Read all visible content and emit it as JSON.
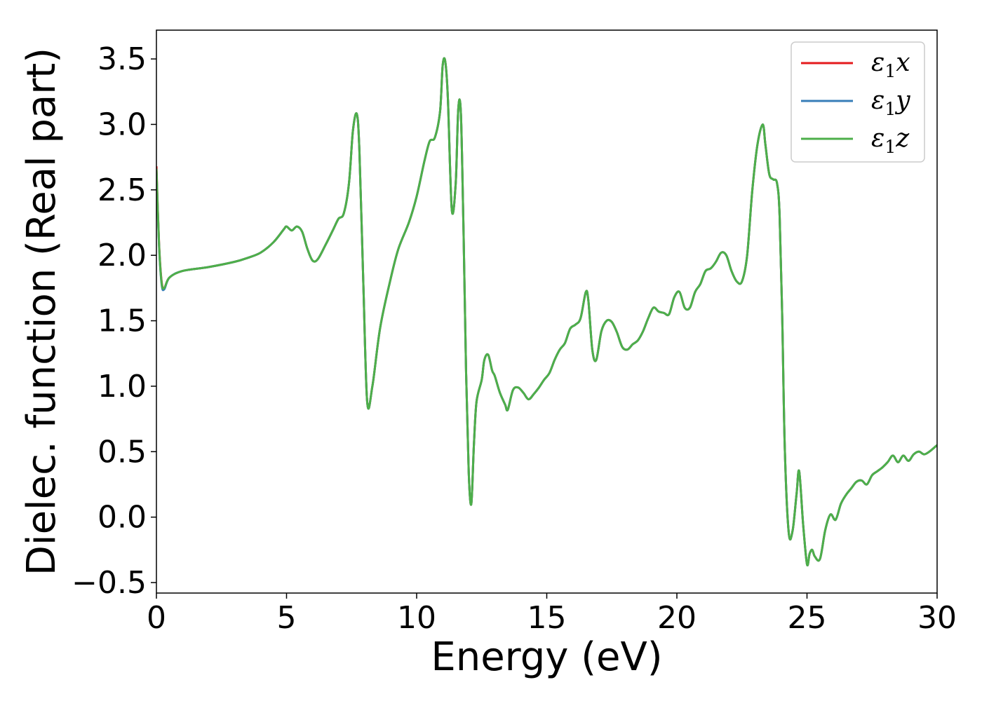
{
  "chart_data": {
    "type": "line",
    "xlabel": "Energy (eV)",
    "ylabel": "Dielec. function (Real part)",
    "xlim": [
      0,
      30
    ],
    "ylim": [
      -0.58,
      3.72
    ],
    "xticks": [
      0,
      5,
      10,
      15,
      20,
      25,
      30
    ],
    "yticks": [
      -0.5,
      0.0,
      0.5,
      1.0,
      1.5,
      2.0,
      2.5,
      3.0,
      3.5
    ],
    "ytick_labels": [
      "−0.5",
      "0.0",
      "0.5",
      "1.0",
      "1.5",
      "2.0",
      "2.5",
      "3.0",
      "3.5"
    ],
    "grid": false,
    "legend": "top-right",
    "series": [
      {
        "name": "ε₁x",
        "name_parts": [
          "ε",
          "1",
          "x"
        ],
        "color": "#e41a1c",
        "x": [
          0,
          0.1,
          0.2,
          0.3,
          0.5,
          1.0,
          2.0,
          3.0,
          3.5,
          4.0,
          4.5,
          4.9,
          5.0,
          5.2,
          5.4,
          5.6,
          5.8,
          6.0,
          6.2,
          6.5,
          6.8,
          7.0,
          7.2,
          7.4,
          7.55,
          7.7,
          7.8,
          7.95,
          8.1,
          8.3,
          8.6,
          9.0,
          9.3,
          9.7,
          10.0,
          10.3,
          10.5,
          10.7,
          10.9,
          11.0,
          11.1,
          11.2,
          11.35,
          11.5,
          11.6,
          11.7,
          11.8,
          11.9,
          12.0,
          12.1,
          12.2,
          12.3,
          12.5,
          12.6,
          12.75,
          12.9,
          13.0,
          13.2,
          13.4,
          13.5,
          13.7,
          13.9,
          14.1,
          14.3,
          14.5,
          14.7,
          14.9,
          15.1,
          15.3,
          15.5,
          15.7,
          15.9,
          16.1,
          16.3,
          16.5,
          16.6,
          16.75,
          16.9,
          17.1,
          17.3,
          17.5,
          17.7,
          17.9,
          18.1,
          18.3,
          18.5,
          18.7,
          18.9,
          19.1,
          19.3,
          19.5,
          19.7,
          19.9,
          20.1,
          20.3,
          20.5,
          20.7,
          20.9,
          21.1,
          21.3,
          21.5,
          21.7,
          21.9,
          22.1,
          22.3,
          22.5,
          22.7,
          22.9,
          23.1,
          23.3,
          23.4,
          23.55,
          23.7,
          23.85,
          23.95,
          24.05,
          24.15,
          24.3,
          24.45,
          24.6,
          24.7,
          24.85,
          25.0,
          25.1,
          25.2,
          25.3,
          25.5,
          25.7,
          25.9,
          26.1,
          26.3,
          26.5,
          26.7,
          26.9,
          27.1,
          27.3,
          27.5,
          27.7,
          27.9,
          28.1,
          28.3,
          28.5,
          28.7,
          28.9,
          29.1,
          29.3,
          29.5,
          29.7,
          30.0
        ],
        "y": [
          2.68,
          2.1,
          1.8,
          1.75,
          1.83,
          1.88,
          1.91,
          1.95,
          1.98,
          2.02,
          2.1,
          2.2,
          2.22,
          2.19,
          2.22,
          2.18,
          2.05,
          1.96,
          1.97,
          2.08,
          2.2,
          2.28,
          2.32,
          2.55,
          2.95,
          3.08,
          2.8,
          1.8,
          0.88,
          1.0,
          1.45,
          1.82,
          2.05,
          2.25,
          2.45,
          2.72,
          2.87,
          2.9,
          3.1,
          3.45,
          3.48,
          3.2,
          2.35,
          2.55,
          3.12,
          3.08,
          2.2,
          1.1,
          0.35,
          0.1,
          0.55,
          0.88,
          1.05,
          1.2,
          1.24,
          1.12,
          1.08,
          0.95,
          0.86,
          0.82,
          0.97,
          0.99,
          0.95,
          0.9,
          0.94,
          0.99,
          1.05,
          1.1,
          1.2,
          1.28,
          1.33,
          1.44,
          1.47,
          1.52,
          1.72,
          1.65,
          1.28,
          1.2,
          1.42,
          1.5,
          1.49,
          1.41,
          1.3,
          1.28,
          1.32,
          1.35,
          1.42,
          1.52,
          1.6,
          1.57,
          1.56,
          1.55,
          1.68,
          1.72,
          1.6,
          1.6,
          1.72,
          1.78,
          1.88,
          1.9,
          1.95,
          2.02,
          2.0,
          1.88,
          1.8,
          1.8,
          2.0,
          2.5,
          2.85,
          3.0,
          2.85,
          2.62,
          2.58,
          2.55,
          2.3,
          1.5,
          0.5,
          -0.12,
          -0.1,
          0.18,
          0.35,
          -0.05,
          -0.36,
          -0.28,
          -0.25,
          -0.3,
          -0.32,
          -0.1,
          0.02,
          -0.02,
          0.1,
          0.17,
          0.22,
          0.27,
          0.28,
          0.25,
          0.32,
          0.35,
          0.38,
          0.42,
          0.47,
          0.42,
          0.47,
          0.43,
          0.48,
          0.5,
          0.48,
          0.5,
          0.55
        ]
      },
      {
        "name": "ε₁y",
        "name_parts": [
          "ε",
          "1",
          "y"
        ],
        "color": "#377eb8",
        "x": [
          0,
          0.1,
          0.2,
          0.3,
          0.5,
          1.0,
          2.0,
          3.0,
          3.5,
          4.0,
          4.5,
          4.9,
          5.0,
          5.2,
          5.4,
          5.6,
          5.8,
          6.0,
          6.2,
          6.5,
          6.8,
          7.0,
          7.2,
          7.4,
          7.55,
          7.7,
          7.8,
          7.95,
          8.1,
          8.3,
          8.6,
          9.0,
          9.3,
          9.7,
          10.0,
          10.3,
          10.5,
          10.7,
          10.9,
          11.0,
          11.1,
          11.2,
          11.35,
          11.5,
          11.6,
          11.7,
          11.8,
          11.9,
          12.0,
          12.1,
          12.2,
          12.3,
          12.5,
          12.6,
          12.75,
          12.9,
          13.0,
          13.2,
          13.4,
          13.5,
          13.7,
          13.9,
          14.1,
          14.3,
          14.5,
          14.7,
          14.9,
          15.1,
          15.3,
          15.5,
          15.7,
          15.9,
          16.1,
          16.3,
          16.5,
          16.6,
          16.75,
          16.9,
          17.1,
          17.3,
          17.5,
          17.7,
          17.9,
          18.1,
          18.3,
          18.5,
          18.7,
          18.9,
          19.1,
          19.3,
          19.5,
          19.7,
          19.9,
          20.1,
          20.3,
          20.5,
          20.7,
          20.9,
          21.1,
          21.3,
          21.5,
          21.7,
          21.9,
          22.1,
          22.3,
          22.5,
          22.7,
          22.9,
          23.1,
          23.3,
          23.4,
          23.55,
          23.7,
          23.85,
          23.95,
          24.05,
          24.15,
          24.3,
          24.45,
          24.6,
          24.7,
          24.85,
          25.0,
          25.1,
          25.2,
          25.3,
          25.5,
          25.7,
          25.9,
          26.1,
          26.3,
          26.5,
          26.7,
          26.9,
          27.1,
          27.3,
          27.5,
          27.7,
          27.9,
          28.1,
          28.3,
          28.5,
          28.7,
          28.9,
          29.1,
          29.3,
          29.5,
          29.7,
          30.0
        ],
        "y": [
          2.65,
          2.08,
          1.78,
          1.74,
          1.83,
          1.88,
          1.91,
          1.95,
          1.98,
          2.02,
          2.1,
          2.2,
          2.22,
          2.19,
          2.22,
          2.18,
          2.05,
          1.96,
          1.97,
          2.08,
          2.2,
          2.28,
          2.32,
          2.55,
          2.95,
          3.08,
          2.8,
          1.8,
          0.88,
          1.0,
          1.45,
          1.82,
          2.05,
          2.25,
          2.45,
          2.72,
          2.87,
          2.9,
          3.1,
          3.45,
          3.48,
          3.2,
          2.35,
          2.55,
          3.12,
          3.08,
          2.2,
          1.1,
          0.35,
          0.1,
          0.55,
          0.88,
          1.05,
          1.2,
          1.24,
          1.12,
          1.08,
          0.95,
          0.86,
          0.82,
          0.97,
          0.99,
          0.95,
          0.9,
          0.94,
          0.99,
          1.05,
          1.1,
          1.2,
          1.28,
          1.33,
          1.44,
          1.47,
          1.52,
          1.72,
          1.65,
          1.28,
          1.2,
          1.42,
          1.5,
          1.49,
          1.41,
          1.3,
          1.28,
          1.32,
          1.35,
          1.42,
          1.52,
          1.6,
          1.57,
          1.56,
          1.55,
          1.68,
          1.72,
          1.6,
          1.6,
          1.72,
          1.78,
          1.88,
          1.9,
          1.95,
          2.02,
          2.0,
          1.88,
          1.8,
          1.8,
          2.0,
          2.5,
          2.85,
          3.0,
          2.85,
          2.62,
          2.58,
          2.55,
          2.3,
          1.5,
          0.5,
          -0.12,
          -0.1,
          0.18,
          0.35,
          -0.05,
          -0.36,
          -0.28,
          -0.25,
          -0.3,
          -0.32,
          -0.1,
          0.02,
          -0.02,
          0.1,
          0.17,
          0.22,
          0.27,
          0.28,
          0.25,
          0.32,
          0.35,
          0.38,
          0.42,
          0.47,
          0.42,
          0.47,
          0.43,
          0.48,
          0.5,
          0.48,
          0.5,
          0.55
        ]
      },
      {
        "name": "ε₁z",
        "name_parts": [
          "ε",
          "1",
          "z"
        ],
        "color": "#4daf4a",
        "x": [
          0,
          0.1,
          0.2,
          0.3,
          0.5,
          1.0,
          2.0,
          3.0,
          3.5,
          4.0,
          4.5,
          4.9,
          5.0,
          5.2,
          5.4,
          5.6,
          5.8,
          6.0,
          6.2,
          6.5,
          6.8,
          7.0,
          7.2,
          7.4,
          7.55,
          7.7,
          7.8,
          7.95,
          8.1,
          8.3,
          8.6,
          9.0,
          9.3,
          9.7,
          10.0,
          10.3,
          10.5,
          10.7,
          10.9,
          11.0,
          11.1,
          11.2,
          11.35,
          11.5,
          11.6,
          11.7,
          11.8,
          11.9,
          12.0,
          12.1,
          12.2,
          12.3,
          12.5,
          12.6,
          12.75,
          12.9,
          13.0,
          13.2,
          13.4,
          13.5,
          13.7,
          13.9,
          14.1,
          14.3,
          14.5,
          14.7,
          14.9,
          15.1,
          15.3,
          15.5,
          15.7,
          15.9,
          16.1,
          16.3,
          16.5,
          16.6,
          16.75,
          16.9,
          17.1,
          17.3,
          17.5,
          17.7,
          17.9,
          18.1,
          18.3,
          18.5,
          18.7,
          18.9,
          19.1,
          19.3,
          19.5,
          19.7,
          19.9,
          20.1,
          20.3,
          20.5,
          20.7,
          20.9,
          21.1,
          21.3,
          21.5,
          21.7,
          21.9,
          22.1,
          22.3,
          22.5,
          22.7,
          22.9,
          23.1,
          23.3,
          23.4,
          23.55,
          23.7,
          23.85,
          23.95,
          24.05,
          24.15,
          24.3,
          24.45,
          24.6,
          24.7,
          24.85,
          25.0,
          25.1,
          25.2,
          25.3,
          25.5,
          25.7,
          25.9,
          26.1,
          26.3,
          26.5,
          26.7,
          26.9,
          27.1,
          27.3,
          27.5,
          27.7,
          27.9,
          28.1,
          28.3,
          28.5,
          28.7,
          28.9,
          29.1,
          29.3,
          29.5,
          29.7,
          30.0
        ],
        "y": [
          2.66,
          2.09,
          1.79,
          1.75,
          1.83,
          1.88,
          1.91,
          1.95,
          1.98,
          2.02,
          2.1,
          2.2,
          2.22,
          2.19,
          2.22,
          2.18,
          2.05,
          1.96,
          1.97,
          2.08,
          2.2,
          2.28,
          2.32,
          2.55,
          2.95,
          3.08,
          2.8,
          1.8,
          0.88,
          1.0,
          1.45,
          1.82,
          2.05,
          2.25,
          2.45,
          2.72,
          2.87,
          2.9,
          3.1,
          3.45,
          3.48,
          3.2,
          2.35,
          2.55,
          3.12,
          3.08,
          2.2,
          1.1,
          0.35,
          0.1,
          0.55,
          0.88,
          1.05,
          1.2,
          1.24,
          1.12,
          1.08,
          0.95,
          0.86,
          0.82,
          0.97,
          0.99,
          0.95,
          0.9,
          0.94,
          0.99,
          1.05,
          1.1,
          1.2,
          1.28,
          1.33,
          1.44,
          1.47,
          1.52,
          1.72,
          1.65,
          1.28,
          1.2,
          1.42,
          1.5,
          1.49,
          1.41,
          1.3,
          1.28,
          1.32,
          1.35,
          1.42,
          1.52,
          1.6,
          1.57,
          1.56,
          1.55,
          1.68,
          1.72,
          1.6,
          1.6,
          1.72,
          1.78,
          1.88,
          1.9,
          1.95,
          2.02,
          2.0,
          1.88,
          1.8,
          1.8,
          2.0,
          2.5,
          2.85,
          3.0,
          2.85,
          2.62,
          2.58,
          2.55,
          2.3,
          1.5,
          0.5,
          -0.12,
          -0.1,
          0.18,
          0.35,
          -0.05,
          -0.36,
          -0.28,
          -0.25,
          -0.3,
          -0.32,
          -0.1,
          0.02,
          -0.02,
          0.1,
          0.17,
          0.22,
          0.27,
          0.28,
          0.25,
          0.32,
          0.35,
          0.38,
          0.42,
          0.47,
          0.42,
          0.47,
          0.43,
          0.48,
          0.5,
          0.48,
          0.5,
          0.55
        ]
      }
    ]
  }
}
